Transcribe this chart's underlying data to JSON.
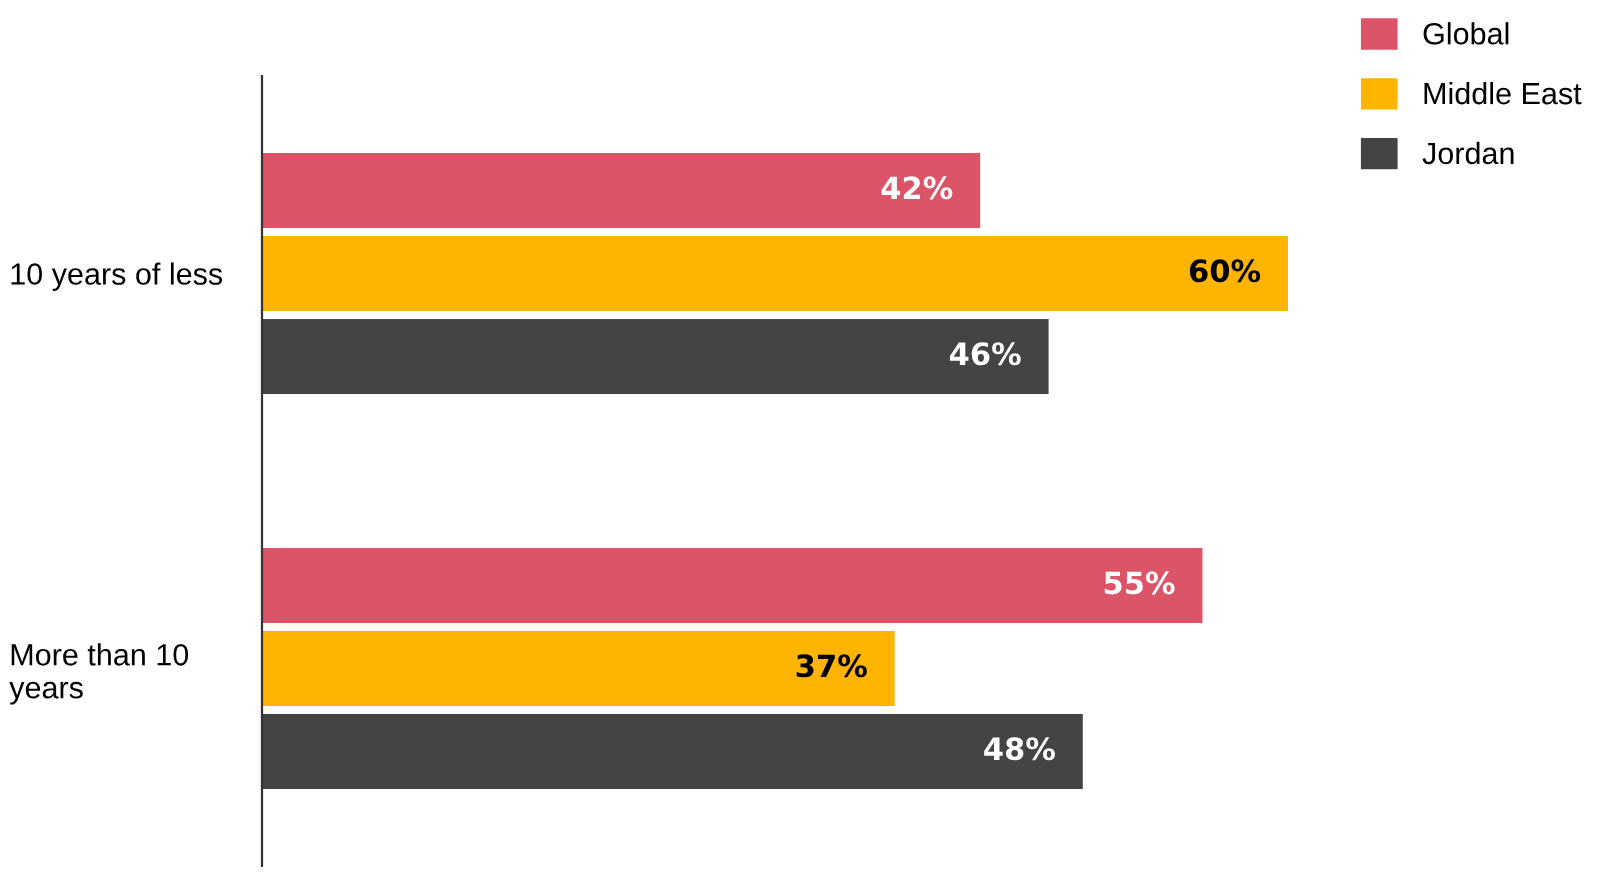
{
  "chart_data": {
    "type": "bar",
    "orientation": "horizontal",
    "categories": [
      "10 years of less",
      "More than 10 years"
    ],
    "series": [
      {
        "name": "Global",
        "color": "#dc5468",
        "values": [
          42,
          55
        ],
        "value_labels": [
          "42%",
          "55%"
        ]
      },
      {
        "name": "Middle East",
        "color": "#ffb400",
        "values": [
          60,
          37
        ],
        "value_labels": [
          "60%",
          "37%"
        ]
      },
      {
        "name": "Jordan",
        "color": "#444444",
        "values": [
          46,
          48
        ],
        "value_labels": [
          "46%",
          "48%"
        ]
      }
    ],
    "tick_labels": "y",
    "grid": false,
    "legend": "top right"
  }
}
